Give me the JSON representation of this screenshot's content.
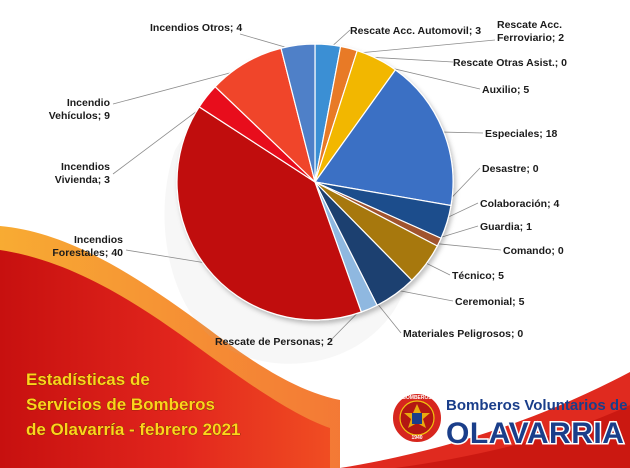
{
  "chart_data": {
    "type": "pie",
    "title": "",
    "categories": [
      "Rescate Acc. Automovil",
      "Rescate Acc. Ferroviario",
      "Rescate Otras Asist.",
      "Auxilio",
      "Especiales",
      "Desastre",
      "Colaboración",
      "Guardia",
      "Comando",
      "Técnico",
      "Ceremonial",
      "Materiales Peligrosos",
      "Rescate de Personas",
      "Incendios Forestales",
      "Incendios Vivienda",
      "Incendio Vehículos",
      "Incendios Otros"
    ],
    "labels": [
      "Rescate Acc. Automovil; 3",
      [
        "Rescate Acc.",
        "Ferroviario; 2"
      ],
      "Rescate Otras Asist.; 0",
      "Auxilio; 5",
      "Especiales; 18",
      "Desastre; 0",
      "Colaboración; 4",
      "Guardia; 1",
      "Comando; 0",
      "Técnico; 5",
      "Ceremonial; 5",
      "Materiales Peligrosos; 0",
      "Rescate de Personas; 2",
      [
        "Incendios",
        "Forestales; 40"
      ],
      [
        "Incendios",
        "Vivienda; 3"
      ],
      [
        "Incendio",
        "Vehículos; 9"
      ],
      "Incendios Otros; 4"
    ],
    "values": [
      3,
      2,
      0,
      5,
      18,
      0,
      4,
      1,
      0,
      5,
      5,
      0,
      2,
      40,
      3,
      9,
      4
    ],
    "colors": [
      "#3b8fd4",
      "#e87a26",
      "#9a9a9a",
      "#f2b705",
      "#3a6fc4",
      "#5b9bd5",
      "#1f4e8c",
      "#a0522d",
      "#7f7f7f",
      "#a7780b",
      "#1e3f70",
      "#6f9fd8",
      "#8fb8e0",
      "#c00d0d",
      "#e8101a",
      "#f0442c",
      "#4f80c8"
    ],
    "legend": "none"
  },
  "footer": {
    "title_lines": [
      "Estadísticas de",
      "Servicios de Bomberos",
      "de Olavarría - febrero 2021"
    ],
    "brand_line1": "Bomberos Voluntarios de",
    "brand_line2": "OLAVARRIA",
    "seal_top": "BOMBEROS",
    "seal_year": "1940",
    "accent": "#d7261e"
  }
}
